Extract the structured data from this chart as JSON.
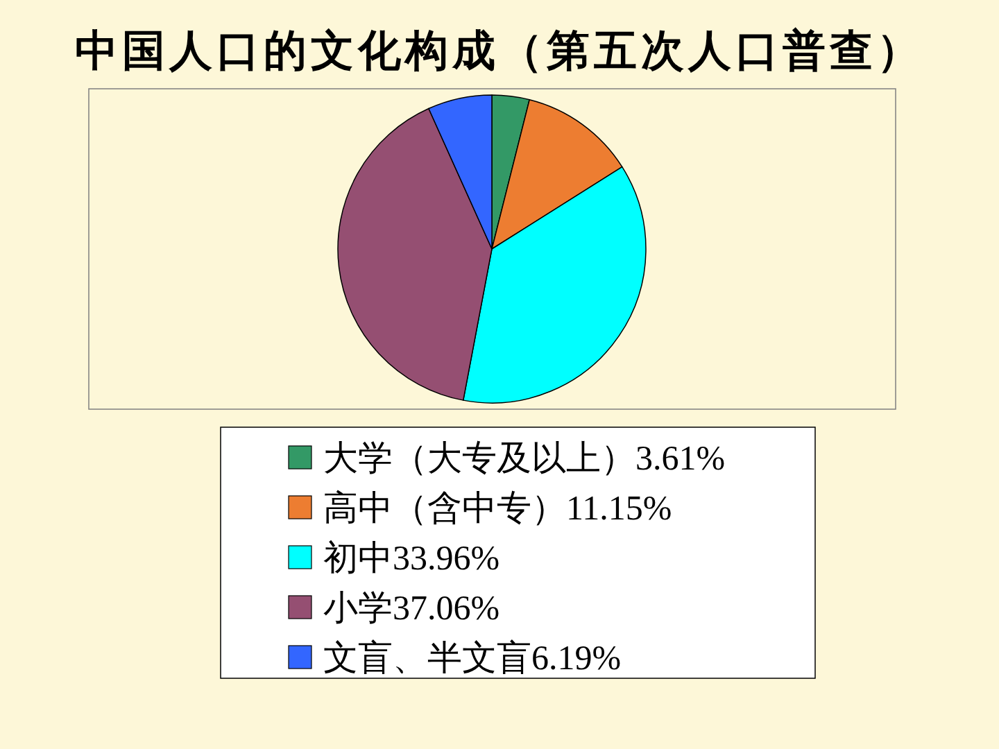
{
  "chart_data": {
    "type": "pie",
    "title": "中国人口的文化构成（第五次人口普查）",
    "categories": [
      "大学（大专及以上）",
      "高中（含中专）",
      "初中",
      "小学",
      "文盲、半文盲"
    ],
    "values": [
      3.61,
      11.15,
      33.96,
      37.06,
      6.19
    ],
    "value_labels": [
      "3.61%",
      "11.15%",
      "33.96%",
      "37.06%",
      "6.19%"
    ],
    "colors": [
      "#339966",
      "#ed7d31",
      "#00ffff",
      "#954f72",
      "#3366ff"
    ],
    "legend": "bottom"
  }
}
